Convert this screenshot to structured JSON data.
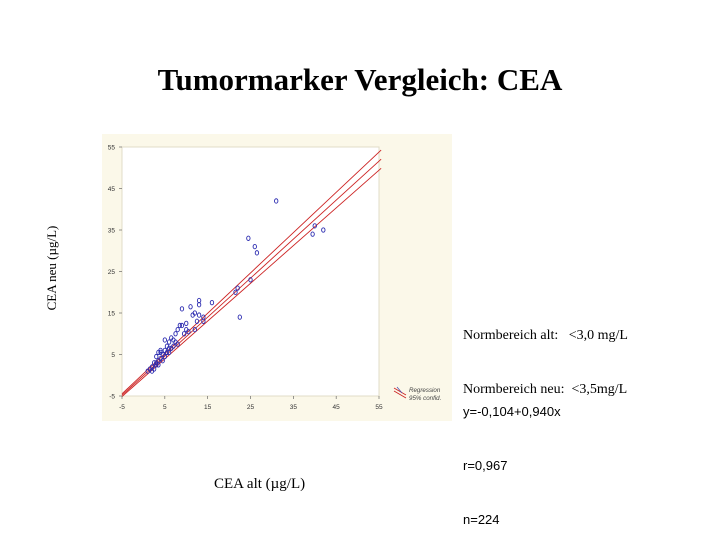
{
  "slide": {
    "title": "Tumormarker Vergleich: CEA",
    "ylabel": "CEA neu (µg/L)",
    "xlabel": "CEA alt (µg/L)",
    "norm_alt": "Normbereich alt:   <3,0 mg/L",
    "norm_neu": "Normbereich neu:  <3,5mg/L",
    "equation": "y=-0,104+0,940x",
    "r_value": "r=0,967",
    "n_value": "n=224"
  },
  "chart_data": {
    "type": "scatter",
    "title": "",
    "xlabel": "CEA alt (µg/L)",
    "ylabel": "CEA neu (µg/L)",
    "xlim": [
      -5,
      55
    ],
    "ylim": [
      -5,
      55
    ],
    "xticks": [
      -5,
      5,
      15,
      25,
      35,
      45,
      55
    ],
    "yticks": [
      -5,
      5,
      15,
      25,
      35,
      45,
      55
    ],
    "grid": false,
    "legend_position": "bottom-right",
    "legend": [
      {
        "label": "Regression",
        "color": "#cc2222"
      },
      {
        "label": "95% confid.",
        "color": "#cc2222"
      }
    ],
    "regression": {
      "intercept": -0.104,
      "slope": 0.94
    },
    "marker_color": "#2b2bb0",
    "line_color": "#cc2222",
    "points": [
      [
        31,
        42
      ],
      [
        24.5,
        33
      ],
      [
        26,
        31
      ],
      [
        26.5,
        29.5
      ],
      [
        40,
        36
      ],
      [
        39.5,
        34
      ],
      [
        42,
        35
      ],
      [
        22,
        21
      ],
      [
        21.5,
        20
      ],
      [
        25,
        23
      ],
      [
        13,
        18
      ],
      [
        16,
        17.5
      ],
      [
        13,
        17
      ],
      [
        11,
        16.5
      ],
      [
        9,
        16
      ],
      [
        14,
        14
      ],
      [
        11.5,
        14.5
      ],
      [
        22.5,
        14
      ],
      [
        12,
        15
      ],
      [
        13,
        14.5
      ],
      [
        10,
        12.5
      ],
      [
        14,
        13
      ],
      [
        12.5,
        13
      ],
      [
        8.5,
        12
      ],
      [
        10,
        11
      ],
      [
        9,
        12
      ],
      [
        8,
        11
      ],
      [
        7.5,
        10
      ],
      [
        10.5,
        10.5
      ],
      [
        12,
        11
      ],
      [
        9.5,
        10
      ],
      [
        6.5,
        9
      ],
      [
        7,
        8.5
      ],
      [
        5,
        8.5
      ],
      [
        6,
        8
      ],
      [
        7.5,
        8
      ],
      [
        8,
        7.5
      ],
      [
        5.5,
        7
      ],
      [
        6.5,
        6.5
      ],
      [
        4,
        6
      ],
      [
        5,
        6
      ],
      [
        6,
        6.5
      ],
      [
        3.5,
        5.5
      ],
      [
        4.5,
        5
      ],
      [
        5.5,
        5.5
      ],
      [
        3,
        4.5
      ],
      [
        4,
        4
      ],
      [
        5,
        4.5
      ],
      [
        3.5,
        3.5
      ],
      [
        2.5,
        3
      ],
      [
        4.5,
        3.5
      ],
      [
        3,
        2.5
      ],
      [
        2,
        2
      ],
      [
        2.5,
        1.5
      ],
      [
        1.5,
        1.5
      ],
      [
        2,
        1
      ],
      [
        1,
        1
      ],
      [
        3,
        3
      ],
      [
        4,
        5.5
      ],
      [
        6,
        5.5
      ],
      [
        7,
        7
      ],
      [
        3.5,
        2.5
      ]
    ]
  }
}
